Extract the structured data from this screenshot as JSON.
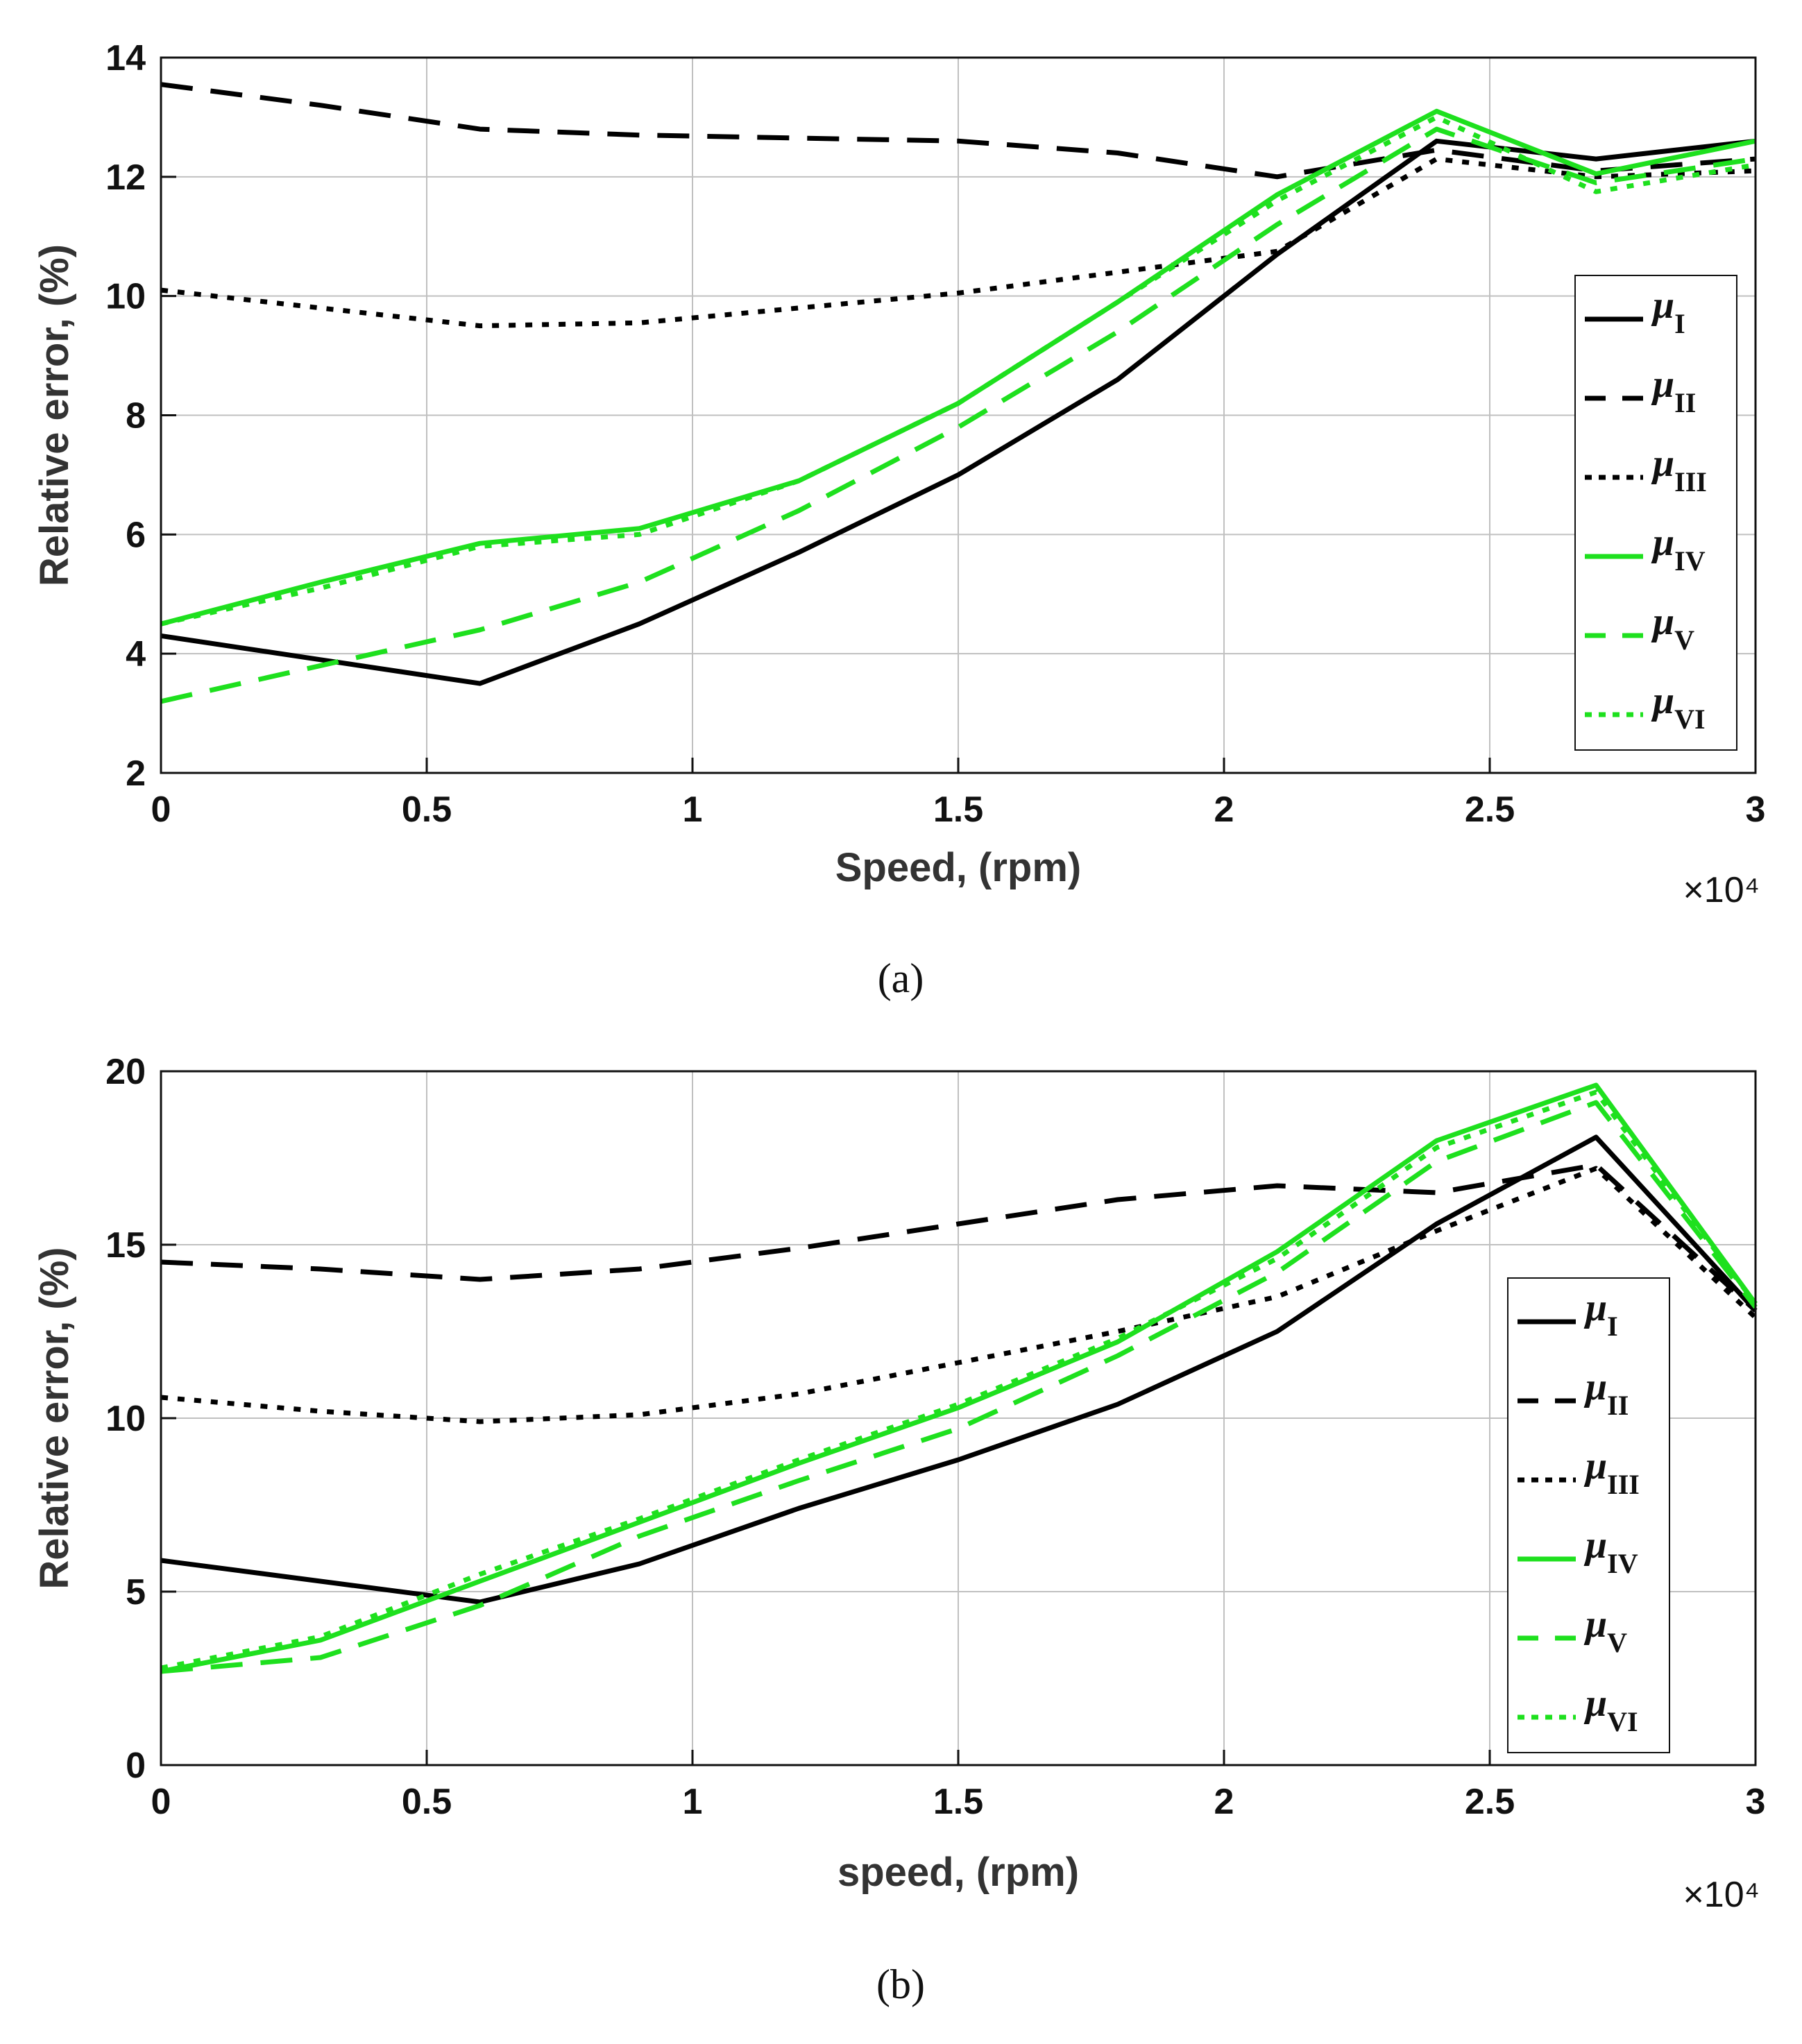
{
  "colors": {
    "black": "#000000",
    "green": "#1ee01e",
    "grid": "#c0c0c0"
  },
  "chart_data": [
    {
      "type": "line",
      "panel": "a",
      "caption": "(a)",
      "title": "",
      "xlabel": "Speed, (rpm)",
      "ylabel": "Relative error, (%)",
      "x_exponent": "×10⁴",
      "xlim": [
        0,
        3
      ],
      "ylim": [
        2,
        14
      ],
      "xticks": [
        0,
        0.5,
        1,
        1.5,
        2,
        2.5,
        3
      ],
      "xtick_labels": [
        "0",
        "0.5",
        "1",
        "1.5",
        "2",
        "2.5",
        "3"
      ],
      "yticks": [
        2,
        4,
        6,
        8,
        10,
        12,
        14
      ],
      "ytick_labels": [
        "2",
        "4",
        "6",
        "8",
        "10",
        "12",
        "14"
      ],
      "grid": true,
      "legend_position": "right",
      "x": [
        0,
        0.3,
        0.6,
        0.9,
        1.2,
        1.5,
        1.8,
        2.1,
        2.4,
        2.7,
        3.0
      ],
      "series": [
        {
          "name": "μI",
          "base": "μ",
          "sub": "I",
          "color": "black",
          "dash": "solid",
          "values": [
            4.3,
            3.9,
            3.5,
            4.5,
            5.7,
            7.0,
            8.6,
            10.7,
            12.6,
            12.3,
            12.6
          ]
        },
        {
          "name": "μII",
          "base": "μ",
          "sub": "II",
          "color": "black",
          "dash": "dashed",
          "values": [
            13.55,
            13.2,
            12.8,
            12.7,
            12.65,
            12.6,
            12.4,
            12.0,
            12.45,
            12.1,
            12.3
          ]
        },
        {
          "name": "μIII",
          "base": "μ",
          "sub": "III",
          "color": "black",
          "dash": "dotted",
          "values": [
            10.1,
            9.8,
            9.5,
            9.55,
            9.8,
            10.05,
            10.4,
            10.75,
            12.3,
            12.0,
            12.1
          ]
        },
        {
          "name": "μIV",
          "base": "μ",
          "sub": "IV",
          "color": "green",
          "dash": "solid",
          "values": [
            4.5,
            5.2,
            5.85,
            6.1,
            6.9,
            8.2,
            9.9,
            11.7,
            13.1,
            12.05,
            12.6
          ]
        },
        {
          "name": "μV",
          "base": "μ",
          "sub": "V",
          "color": "green",
          "dash": "dashed",
          "values": [
            3.2,
            3.8,
            4.4,
            5.2,
            6.4,
            7.8,
            9.4,
            11.2,
            12.8,
            11.9,
            12.3
          ]
        },
        {
          "name": "μVI",
          "base": "μ",
          "sub": "VI",
          "color": "green",
          "dash": "dotted",
          "values": [
            4.5,
            5.1,
            5.8,
            6.0,
            6.9,
            8.2,
            9.9,
            11.6,
            13.0,
            11.75,
            12.2
          ]
        }
      ]
    },
    {
      "type": "line",
      "panel": "b",
      "caption": "(b)",
      "title": "",
      "xlabel": "speed, (rpm)",
      "ylabel": "Relative error, (%)",
      "x_exponent": "×10⁴",
      "xlim": [
        0,
        3
      ],
      "ylim": [
        0,
        20
      ],
      "xticks": [
        0,
        0.5,
        1,
        1.5,
        2,
        2.5,
        3
      ],
      "xtick_labels": [
        "0",
        "0.5",
        "1",
        "1.5",
        "2",
        "2.5",
        "3"
      ],
      "yticks": [
        0,
        5,
        10,
        15,
        20
      ],
      "ytick_labels": [
        "0",
        "5",
        "10",
        "15",
        "20"
      ],
      "grid": true,
      "legend_position": "right",
      "x": [
        0,
        0.3,
        0.6,
        0.9,
        1.2,
        1.5,
        1.8,
        2.1,
        2.4,
        2.7,
        3.0
      ],
      "series": [
        {
          "name": "μI",
          "base": "μ",
          "sub": "I",
          "color": "black",
          "dash": "solid",
          "values": [
            5.9,
            5.3,
            4.7,
            5.8,
            7.4,
            8.8,
            10.4,
            12.5,
            15.6,
            18.1,
            13.1
          ]
        },
        {
          "name": "μII",
          "base": "μ",
          "sub": "II",
          "color": "black",
          "dash": "dashed",
          "values": [
            14.5,
            14.3,
            14.0,
            14.3,
            14.9,
            15.6,
            16.3,
            16.7,
            16.5,
            17.3,
            13.1
          ]
        },
        {
          "name": "μIII",
          "base": "μ",
          "sub": "III",
          "color": "black",
          "dash": "dotted",
          "values": [
            10.6,
            10.2,
            9.9,
            10.1,
            10.7,
            11.6,
            12.5,
            13.5,
            15.4,
            17.2,
            12.9
          ]
        },
        {
          "name": "μIV",
          "base": "μ",
          "sub": "IV",
          "color": "green",
          "dash": "solid",
          "values": [
            2.7,
            3.6,
            5.3,
            7.0,
            8.7,
            10.3,
            12.2,
            14.8,
            18.0,
            19.6,
            13.3
          ]
        },
        {
          "name": "μV",
          "base": "μ",
          "sub": "V",
          "color": "green",
          "dash": "dashed",
          "values": [
            2.7,
            3.1,
            4.6,
            6.6,
            8.2,
            9.7,
            11.8,
            14.2,
            17.4,
            19.1,
            13.2
          ]
        },
        {
          "name": "μVI",
          "base": "μ",
          "sub": "VI",
          "color": "green",
          "dash": "dotted",
          "values": [
            2.8,
            3.7,
            5.5,
            7.1,
            8.8,
            10.4,
            12.3,
            14.6,
            17.8,
            19.4,
            13.3
          ]
        }
      ]
    }
  ]
}
